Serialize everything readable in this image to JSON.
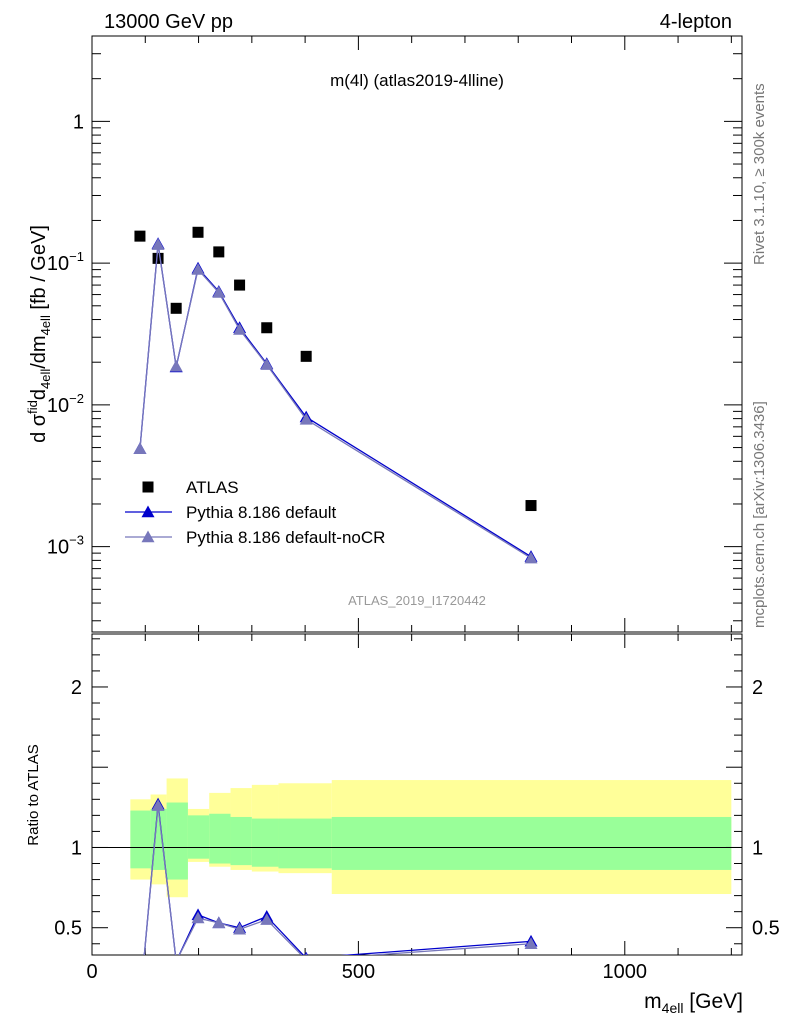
{
  "header": {
    "left": "13000 GeV pp",
    "right": "4-lepton"
  },
  "side": {
    "rivet": "Rivet 3.1.10, ≥ 300k events",
    "site": "mcplots.cern.ch [arXiv:1306.3436]"
  },
  "chart_data": [
    {
      "type": "scatter",
      "title": "m(4l) (atlas2019-4lline)",
      "watermark": "ATLAS_2019_I1720442",
      "ylabel": "d σᶠid₄ₑₗₗ/dm₄ₑₗₗ [fb / GeV]",
      "ylabel_parts": {
        "pre": "d σ",
        "sup": "fid",
        "mid1": "d",
        "sub1": "4ell",
        "mid2": "/dm",
        "sub2": "4ell",
        "post": " [fb / GeV]"
      },
      "yscale": "log",
      "ylim": [
        0.00025,
        4.0
      ],
      "xlim": [
        0,
        1220
      ],
      "yticks": [
        {
          "value": 0.001,
          "base": "10",
          "exp": "−3"
        },
        {
          "value": 0.01,
          "base": "10",
          "exp": "−2"
        },
        {
          "value": 0.1,
          "base": "10",
          "exp": "−1"
        },
        {
          "value": 1,
          "base": "1",
          "exp": ""
        }
      ],
      "legend": {
        "placement": "lower-left",
        "entries": [
          "ATLAS",
          "Pythia 8.186 default",
          "Pythia 8.186 default-noCR"
        ]
      },
      "series": [
        {
          "name": "ATLAS",
          "marker": "square",
          "color": "#000000",
          "x": [
            90,
            124,
            158,
            199,
            238,
            277,
            328,
            402,
            824
          ],
          "y": [
            0.155,
            0.108,
            0.048,
            0.165,
            0.12,
            0.07,
            0.035,
            0.022,
            0.00195
          ]
        },
        {
          "name": "Pythia 8.186 default",
          "marker": "triangle",
          "color": "#0000cc",
          "x": [
            90,
            124,
            158,
            199,
            238,
            277,
            328,
            402,
            824
          ],
          "y": [
            0.0049,
            0.137,
            0.0185,
            0.092,
            0.063,
            0.035,
            0.0195,
            0.0082,
            0.00085
          ]
        },
        {
          "name": "Pythia 8.186 default-noCR",
          "marker": "triangle",
          "color": "#7777bb",
          "x": [
            90,
            124,
            158,
            199,
            238,
            277,
            328,
            402,
            824
          ],
          "y": [
            0.0049,
            0.135,
            0.0187,
            0.09,
            0.062,
            0.034,
            0.0192,
            0.0079,
            0.00083
          ]
        }
      ]
    },
    {
      "type": "line",
      "ylabel": "Ratio to ATLAS",
      "xlabel_parts": {
        "pre": "m",
        "sub": "4ell",
        "post": " [GeV]"
      },
      "xlim": [
        0,
        1220
      ],
      "ylim": [
        0.33,
        2.33
      ],
      "xticks": [
        0,
        500,
        1000
      ],
      "yticks": [
        0.5,
        1,
        2
      ],
      "reference_line": 1,
      "bands": [
        {
          "x0": 72,
          "x1": 110,
          "outer": [
            0.8,
            1.3
          ],
          "inner": [
            0.87,
            1.23
          ]
        },
        {
          "x0": 110,
          "x1": 140,
          "outer": [
            0.77,
            1.33
          ],
          "inner": [
            0.86,
            1.24
          ]
        },
        {
          "x0": 140,
          "x1": 180,
          "outer": [
            0.69,
            1.43
          ],
          "inner": [
            0.8,
            1.28
          ]
        },
        {
          "x0": 180,
          "x1": 220,
          "outer": [
            0.91,
            1.24
          ],
          "inner": [
            0.93,
            1.2
          ]
        },
        {
          "x0": 220,
          "x1": 260,
          "outer": [
            0.88,
            1.34
          ],
          "inner": [
            0.9,
            1.21
          ]
        },
        {
          "x0": 260,
          "x1": 300,
          "outer": [
            0.86,
            1.37
          ],
          "inner": [
            0.89,
            1.19
          ]
        },
        {
          "x0": 300,
          "x1": 350,
          "outer": [
            0.85,
            1.39
          ],
          "inner": [
            0.88,
            1.18
          ]
        },
        {
          "x0": 350,
          "x1": 450,
          "outer": [
            0.84,
            1.4
          ],
          "inner": [
            0.87,
            1.18
          ]
        },
        {
          "x0": 450,
          "x1": 1200,
          "outer": [
            0.71,
            1.42
          ],
          "inner": [
            0.86,
            1.19
          ]
        }
      ],
      "band_colors": {
        "outer": "#ffff99",
        "inner": "#99ff99"
      },
      "series": [
        {
          "name": "Pythia 8.186 default",
          "color": "#0000cc",
          "x": [
            90,
            124,
            158,
            199,
            238,
            277,
            328,
            402,
            824
          ],
          "y": [
            0.032,
            1.27,
            0.29,
            0.58,
            0.53,
            0.5,
            0.57,
            0.31,
            0.415
          ]
        },
        {
          "name": "Pythia 8.186 default-noCR",
          "color": "#7777bb",
          "x": [
            90,
            124,
            158,
            199,
            238,
            277,
            328,
            402,
            824
          ],
          "y": [
            0.032,
            1.26,
            0.29,
            0.56,
            0.53,
            0.49,
            0.55,
            0.3,
            0.4
          ]
        }
      ]
    }
  ]
}
